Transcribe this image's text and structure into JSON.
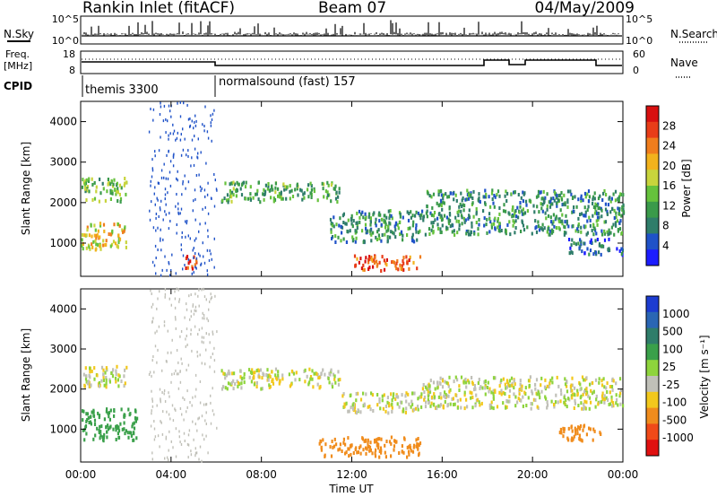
{
  "header": {
    "station": "Rankin Inlet (fitACF)",
    "beam": "Beam 07",
    "date": "04/May/2009"
  },
  "status_panels": {
    "left_labels": {
      "nsky": "N.Sky",
      "freq_line1": "Freq.",
      "freq_line2": "[MHz]",
      "cpid": "CPID"
    },
    "right_labels": {
      "nsearch": "N.Search",
      "nave": "Nave"
    },
    "noise_ticks_left": [
      "10^5",
      "10^0"
    ],
    "noise_ticks_right": [
      "10^5",
      "10^0"
    ],
    "freq_ticks_left": [
      "18",
      "8"
    ],
    "nave_ticks_right": [
      "60",
      "0"
    ],
    "cpid_segments": [
      {
        "name": "themis 3300",
        "start_h": 0,
        "end_h": 6
      },
      {
        "name": "normalsound (fast) 157",
        "start_h": 6,
        "end_h": 24
      }
    ]
  },
  "chart_data": [
    {
      "type": "heatmap",
      "title": "",
      "ylabel": "Slant Range [km]",
      "xlabel": "",
      "xlim": [
        0,
        24
      ],
      "ylim": [
        180,
        4500
      ],
      "ytick_labels": [
        "1000",
        "2000",
        "3000",
        "4000"
      ],
      "colorbar": {
        "label": "Power [dB]",
        "tick_labels": [
          "4",
          "8",
          "12",
          "16",
          "20",
          "24",
          "28"
        ],
        "colors": [
          "#1c1cff",
          "#1f52c8",
          "#2f7d6a",
          "#3a9a4a",
          "#66c23c",
          "#c8d43c",
          "#f2b21c",
          "#f07d1c",
          "#e83d18",
          "#d81010"
        ]
      },
      "echo_regions_hours_km_db": [
        {
          "t0": 0.0,
          "t1": 2.0,
          "r0": 2000,
          "r1": 2600,
          "power": 14
        },
        {
          "t0": 0.0,
          "t1": 2.0,
          "r0": 800,
          "r1": 1500,
          "power": 18
        },
        {
          "t0": 4.6,
          "t1": 5.1,
          "r0": 250,
          "r1": 700,
          "power": 28
        },
        {
          "t0": 6.2,
          "t1": 11.5,
          "r0": 2000,
          "r1": 2500,
          "power": 12
        },
        {
          "t0": 11.0,
          "t1": 15.0,
          "r0": 1000,
          "r1": 1800,
          "power": 10
        },
        {
          "t0": 12.0,
          "t1": 15.0,
          "r0": 300,
          "r1": 700,
          "power": 26
        },
        {
          "t0": 15.0,
          "t1": 24.0,
          "r0": 1200,
          "r1": 2300,
          "power": 10
        },
        {
          "t0": 21.5,
          "t1": 24.0,
          "r0": 700,
          "r1": 1100,
          "power": 6
        }
      ]
    },
    {
      "type": "heatmap",
      "title": "",
      "ylabel": "Slant Range [km]",
      "xlabel": "Time UT",
      "xlim": [
        0,
        24
      ],
      "ylim": [
        180,
        4500
      ],
      "xtick_labels": [
        "00:00",
        "04:00",
        "08:00",
        "12:00",
        "16:00",
        "20:00",
        "00:00"
      ],
      "ytick_labels": [
        "1000",
        "2000",
        "3000",
        "4000"
      ],
      "colorbar": {
        "label": "Velocity  [m s⁻¹]",
        "tick_labels": [
          "1000",
          "500",
          "100",
          "25",
          "-25",
          "-100",
          "-500",
          "-1000"
        ],
        "colors": [
          "#1c3cd0",
          "#2a66b4",
          "#2f7d6a",
          "#3aa04a",
          "#8ed43c",
          "#c0c0b8",
          "#f2c81c",
          "#f08c1c",
          "#f04a18",
          "#e01010"
        ]
      },
      "echo_regions_hours_km_ms": [
        {
          "t0": 0.0,
          "t1": 2.0,
          "r0": 2000,
          "r1": 2600,
          "velocity": 0
        },
        {
          "t0": 0.0,
          "t1": 2.5,
          "r0": 700,
          "r1": 1500,
          "velocity": 200
        },
        {
          "t0": 6.2,
          "t1": 11.5,
          "r0": 2000,
          "r1": 2500,
          "velocity": 0
        },
        {
          "t0": 11.5,
          "t1": 15.0,
          "r0": 1400,
          "r1": 1900,
          "velocity": 0
        },
        {
          "t0": 10.5,
          "t1": 15.0,
          "r0": 300,
          "r1": 800,
          "velocity": -300
        },
        {
          "t0": 15.0,
          "t1": 24.0,
          "r0": 1500,
          "r1": 2300,
          "velocity": 0
        },
        {
          "t0": 21.0,
          "t1": 23.0,
          "r0": 700,
          "r1": 1100,
          "velocity": -200
        }
      ]
    }
  ]
}
